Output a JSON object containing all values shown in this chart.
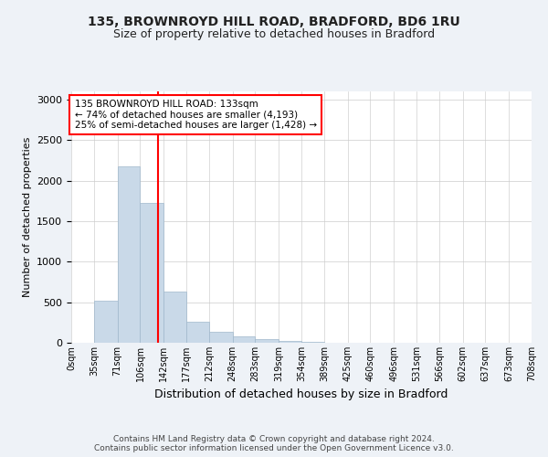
{
  "title1": "135, BROWNROYD HILL ROAD, BRADFORD, BD6 1RU",
  "title2": "Size of property relative to detached houses in Bradford",
  "xlabel": "Distribution of detached houses by size in Bradford",
  "ylabel": "Number of detached properties",
  "bar_values": [
    5,
    520,
    2180,
    1730,
    630,
    260,
    140,
    75,
    40,
    20,
    10,
    5,
    3,
    2,
    2,
    1,
    1,
    1,
    0,
    0
  ],
  "bin_labels": [
    "0sqm",
    "35sqm",
    "71sqm",
    "106sqm",
    "142sqm",
    "177sqm",
    "212sqm",
    "248sqm",
    "283sqm",
    "319sqm",
    "354sqm",
    "389sqm",
    "425sqm",
    "460sqm",
    "496sqm",
    "531sqm",
    "566sqm",
    "602sqm",
    "637sqm",
    "673sqm",
    "708sqm"
  ],
  "bin_edges": [
    0,
    35,
    71,
    106,
    142,
    177,
    212,
    248,
    283,
    319,
    354,
    389,
    425,
    460,
    496,
    531,
    566,
    602,
    637,
    673,
    708
  ],
  "property_size": 133,
  "red_line_x": 133,
  "bar_color": "#c9d9e8",
  "bar_edge_color": "#a0b8cc",
  "annotation_line1": "135 BROWNROYD HILL ROAD: 133sqm",
  "annotation_line2": "← 74% of detached houses are smaller (4,193)",
  "annotation_line3": "25% of semi-detached houses are larger (1,428) →",
  "footer": "Contains HM Land Registry data © Crown copyright and database right 2024.\nContains public sector information licensed under the Open Government Licence v3.0.",
  "ylim": [
    0,
    3100
  ],
  "yticks": [
    0,
    500,
    1000,
    1500,
    2000,
    2500,
    3000
  ],
  "background_color": "#eef2f7",
  "plot_bg_color": "#ffffff"
}
